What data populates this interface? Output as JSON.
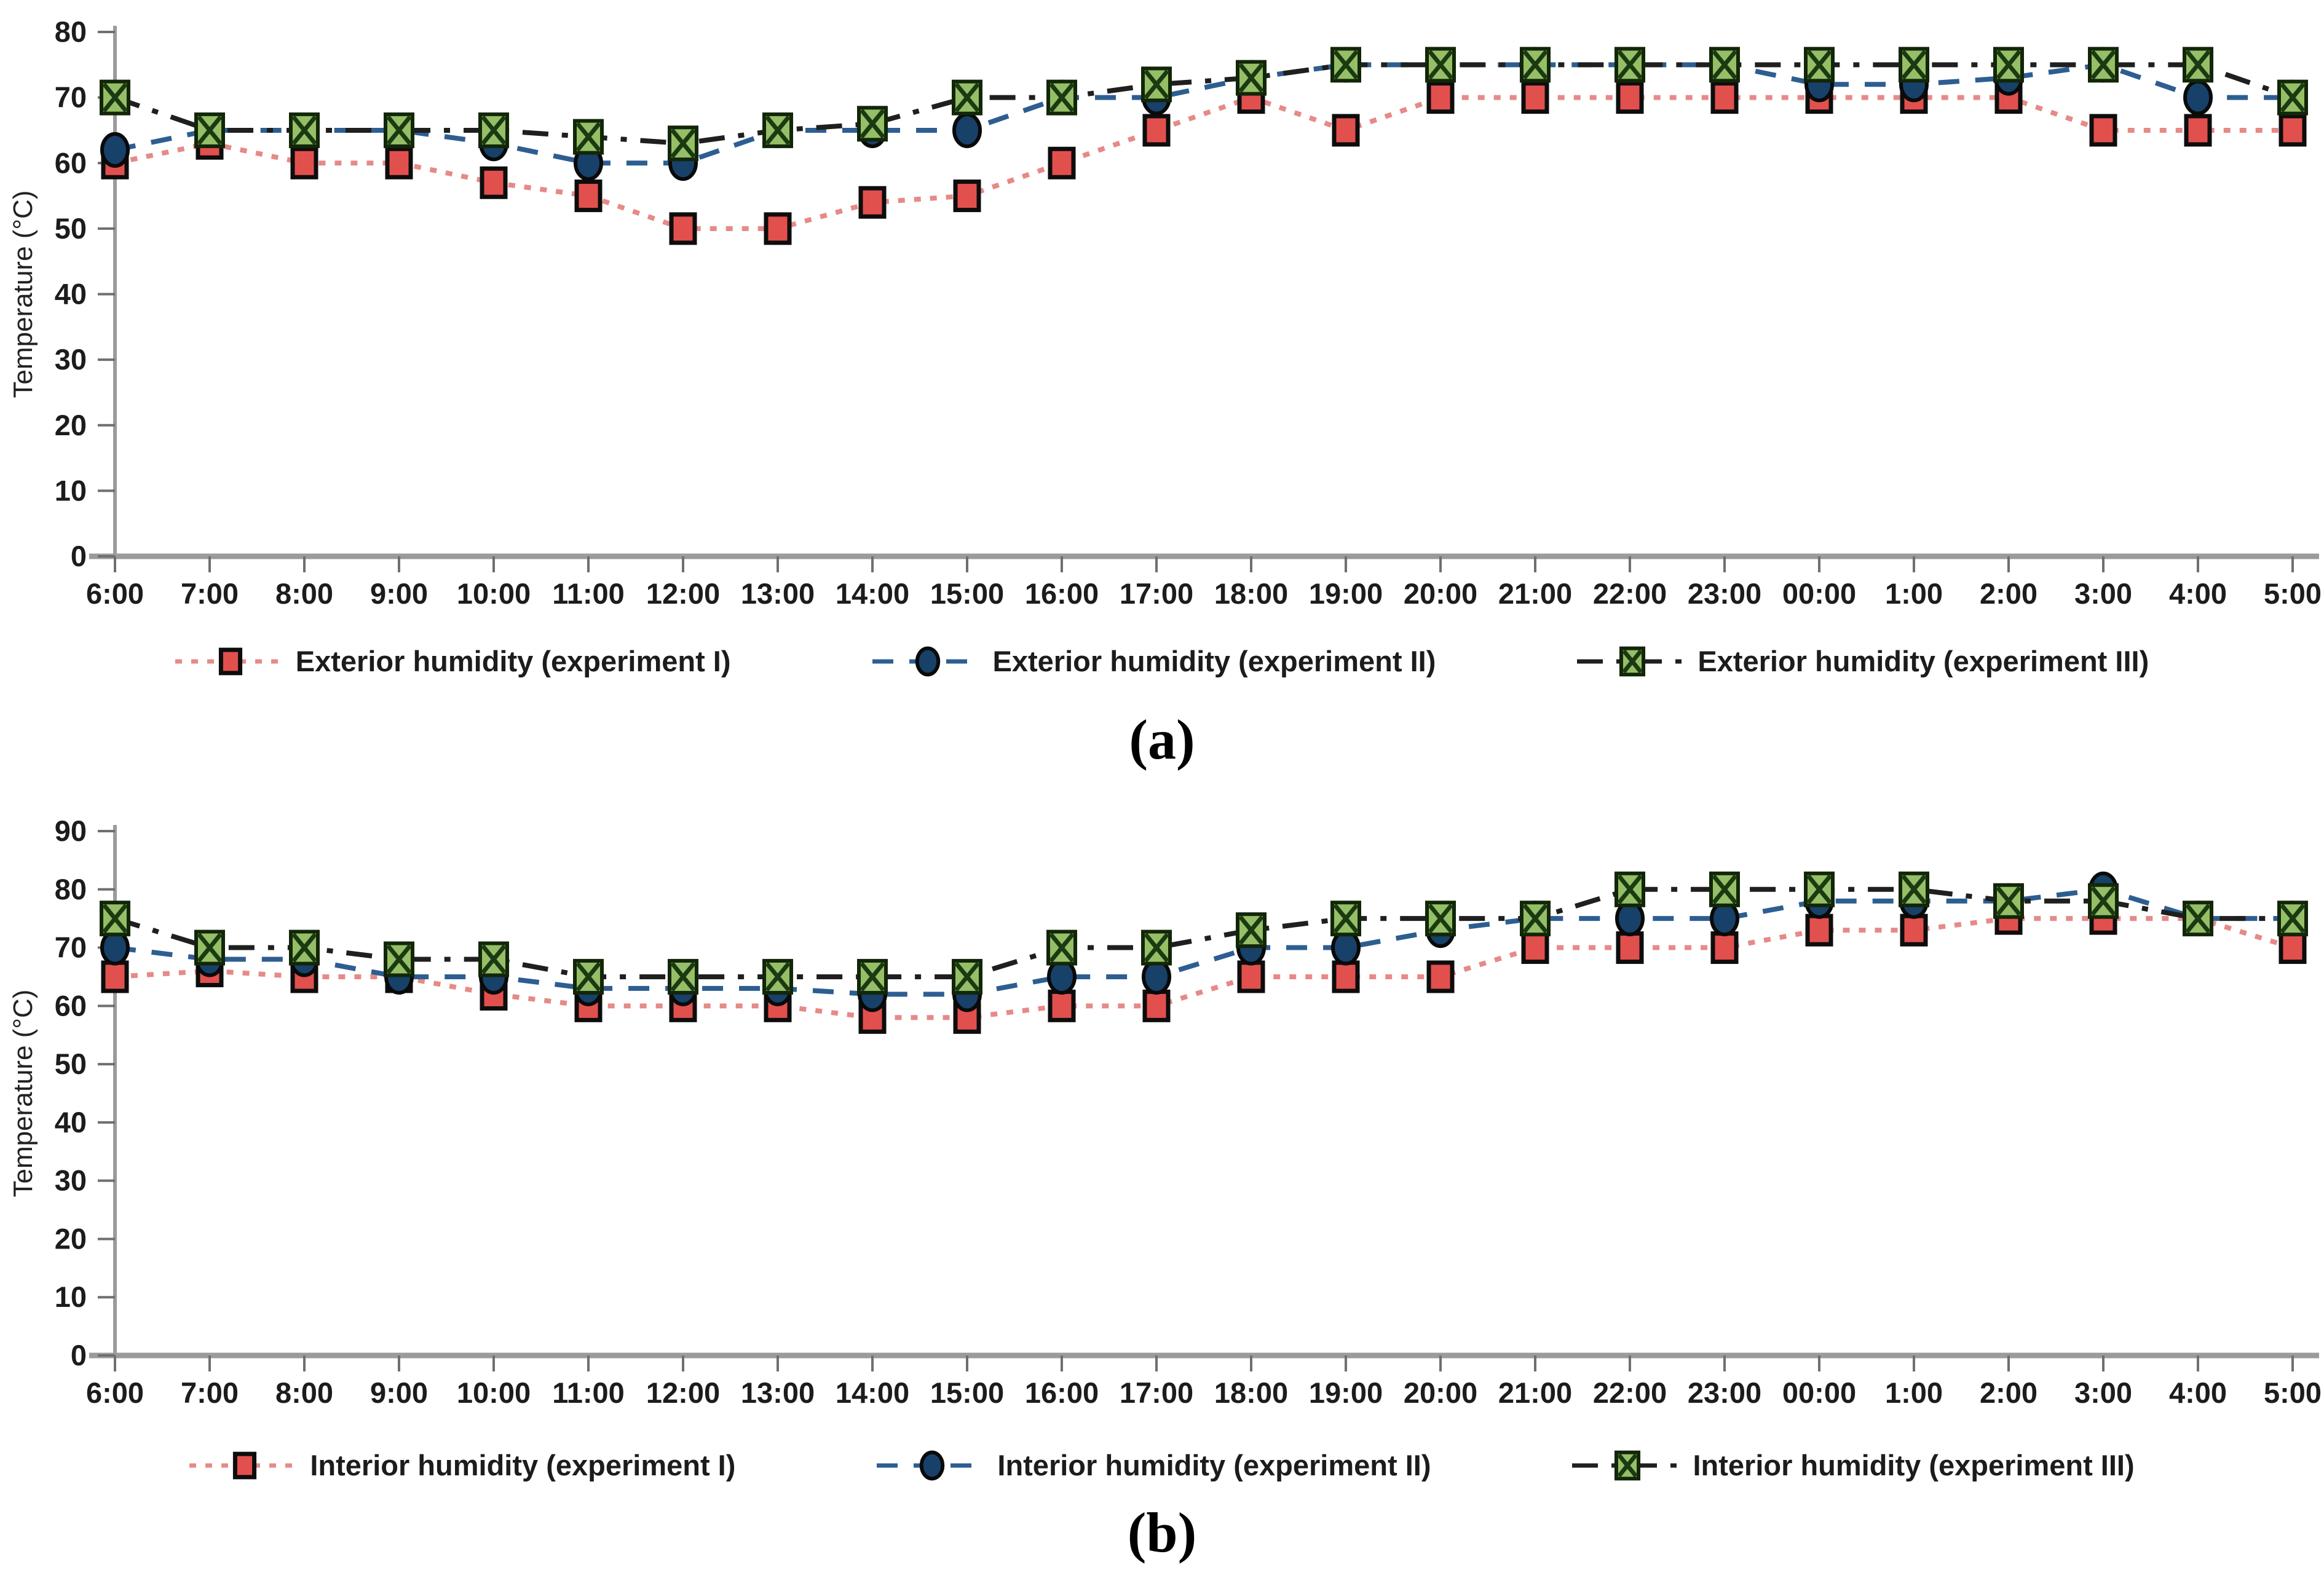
{
  "figure": {
    "captions": {
      "a": "(a)",
      "b": "(b)"
    }
  },
  "chart_data": [
    {
      "type": "line",
      "panel": "a",
      "title": "",
      "xlabel": "",
      "ylabel": "Temperature (°C)",
      "ylim": [
        0,
        80
      ],
      "ytick_step": 10,
      "grid": false,
      "legend_position": "bottom",
      "categories": [
        "6:00",
        "7:00",
        "8:00",
        "9:00",
        "10:00",
        "11:00",
        "12:00",
        "13:00",
        "14:00",
        "15:00",
        "16:00",
        "17:00",
        "18:00",
        "19:00",
        "20:00",
        "21:00",
        "22:00",
        "23:00",
        "00:00",
        "1:00",
        "2:00",
        "3:00",
        "4:00",
        "5:00"
      ],
      "series": [
        {
          "name": "Exterior humidity (experiment I)",
          "marker": "square",
          "marker_color": "#e2504e",
          "marker_border": "#0d0d0d",
          "line_color": "#e68a87",
          "dash": "dotted",
          "values": [
            60,
            63,
            60,
            60,
            57,
            55,
            50,
            50,
            54,
            55,
            60,
            65,
            70,
            65,
            70,
            70,
            70,
            70,
            70,
            70,
            70,
            65,
            65,
            65
          ]
        },
        {
          "name": "Exterior humidity (experiment II)",
          "marker": "circle",
          "marker_color": "#174169",
          "marker_border": "#0a0a0a",
          "line_color": "#2d5e91",
          "dash": "dashed",
          "values": [
            62,
            65,
            65,
            65,
            63,
            60,
            60,
            65,
            65,
            65,
            70,
            70,
            73,
            75,
            75,
            75,
            75,
            75,
            72,
            72,
            73,
            75,
            70,
            70
          ]
        },
        {
          "name": "Exterior humidity (experiment III)",
          "marker": "x-square",
          "marker_color": "#95bf66",
          "marker_border": "#122608",
          "x_stroke": "#1b3a12",
          "line_color": "#1f1f1f",
          "dash": "dashdot",
          "values": [
            70,
            65,
            65,
            65,
            65,
            64,
            63,
            65,
            66,
            70,
            70,
            72,
            73,
            75,
            75,
            75,
            75,
            75,
            75,
            75,
            75,
            75,
            75,
            70
          ]
        }
      ]
    },
    {
      "type": "line",
      "panel": "b",
      "title": "",
      "xlabel": "",
      "ylabel": "Temperature (°C)",
      "ylim": [
        0,
        90
      ],
      "ytick_step": 10,
      "grid": false,
      "legend_position": "bottom",
      "categories": [
        "6:00",
        "7:00",
        "8:00",
        "9:00",
        "10:00",
        "11:00",
        "12:00",
        "13:00",
        "14:00",
        "15:00",
        "16:00",
        "17:00",
        "18:00",
        "19:00",
        "20:00",
        "21:00",
        "22:00",
        "23:00",
        "00:00",
        "1:00",
        "2:00",
        "3:00",
        "4:00",
        "5:00"
      ],
      "series": [
        {
          "name": "Interior humidity (experiment I)",
          "marker": "square",
          "marker_color": "#e2504e",
          "marker_border": "#0d0d0d",
          "line_color": "#e68a87",
          "dash": "dotted",
          "values": [
            65,
            66,
            65,
            65,
            62,
            60,
            60,
            60,
            58,
            58,
            60,
            60,
            65,
            65,
            65,
            70,
            70,
            70,
            73,
            73,
            75,
            75,
            75,
            70
          ]
        },
        {
          "name": "Interior humidity (experiment II)",
          "marker": "circle",
          "marker_color": "#174169",
          "marker_border": "#0a0a0a",
          "line_color": "#2d5e91",
          "dash": "dashed",
          "values": [
            70,
            68,
            68,
            65,
            65,
            63,
            63,
            63,
            62,
            62,
            65,
            65,
            70,
            70,
            73,
            75,
            75,
            75,
            78,
            78,
            78,
            80,
            75,
            75
          ]
        },
        {
          "name": "Interior humidity (experiment III)",
          "marker": "x-square",
          "marker_color": "#95bf66",
          "marker_border": "#122608",
          "x_stroke": "#1b3a12",
          "line_color": "#1f1f1f",
          "dash": "dashdot",
          "values": [
            75,
            70,
            70,
            68,
            68,
            65,
            65,
            65,
            65,
            65,
            70,
            70,
            73,
            75,
            75,
            75,
            80,
            80,
            80,
            80,
            78,
            78,
            75,
            75
          ]
        }
      ]
    }
  ]
}
